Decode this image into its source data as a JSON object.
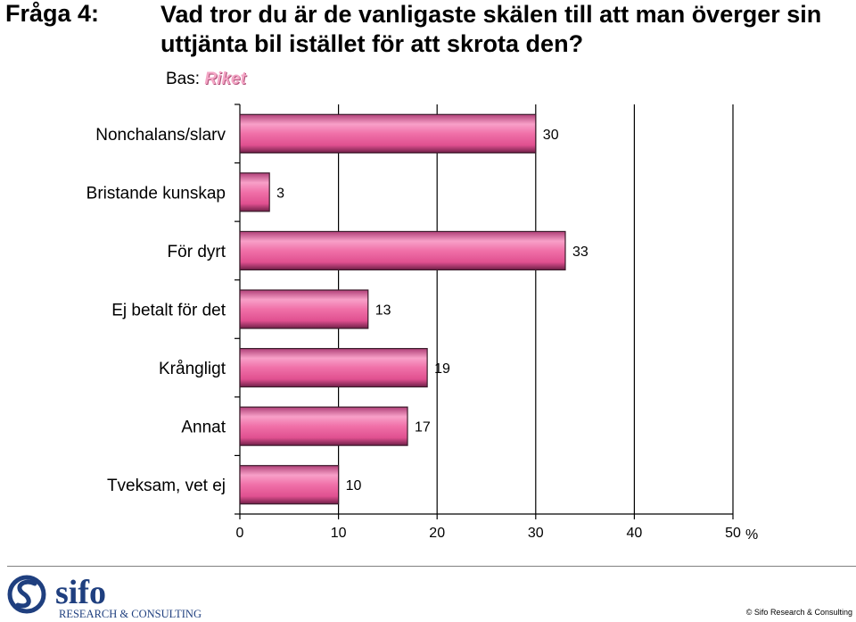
{
  "header": {
    "question_label": "Fråga 4:",
    "question_text": "Vad tror du är de vanligaste skälen till att man överger sin uttjänta bil istället för att skrota den?",
    "base_label": "Bas:",
    "base_value": "Riket"
  },
  "chart_data": {
    "type": "bar",
    "orientation": "horizontal",
    "categories": [
      "Nonchalans/slarv",
      "Bristande kunskap",
      "För dyrt",
      "Ej betalt för det",
      "Krångligt",
      "Annat",
      "Tveksam, vet ej"
    ],
    "values": [
      30,
      3,
      33,
      13,
      19,
      17,
      10
    ],
    "value_labels": [
      "30",
      "3",
      "33",
      "13",
      "19",
      "17",
      "10"
    ],
    "xlim": [
      0,
      50
    ],
    "xticks": [
      "0",
      "10",
      "20",
      "30",
      "40",
      "50"
    ],
    "unit": "%",
    "grid": true,
    "colors": {
      "bar": "#f080b0",
      "bar_edge": "#3a1a2a",
      "grid": "#000000"
    }
  },
  "footer": {
    "logo_name": "sifo",
    "logo_tagline": "RESEARCH & CONSULTING",
    "copyright": "© Sifo Research & Consulting",
    "brand_color": "#1f3f7f"
  }
}
